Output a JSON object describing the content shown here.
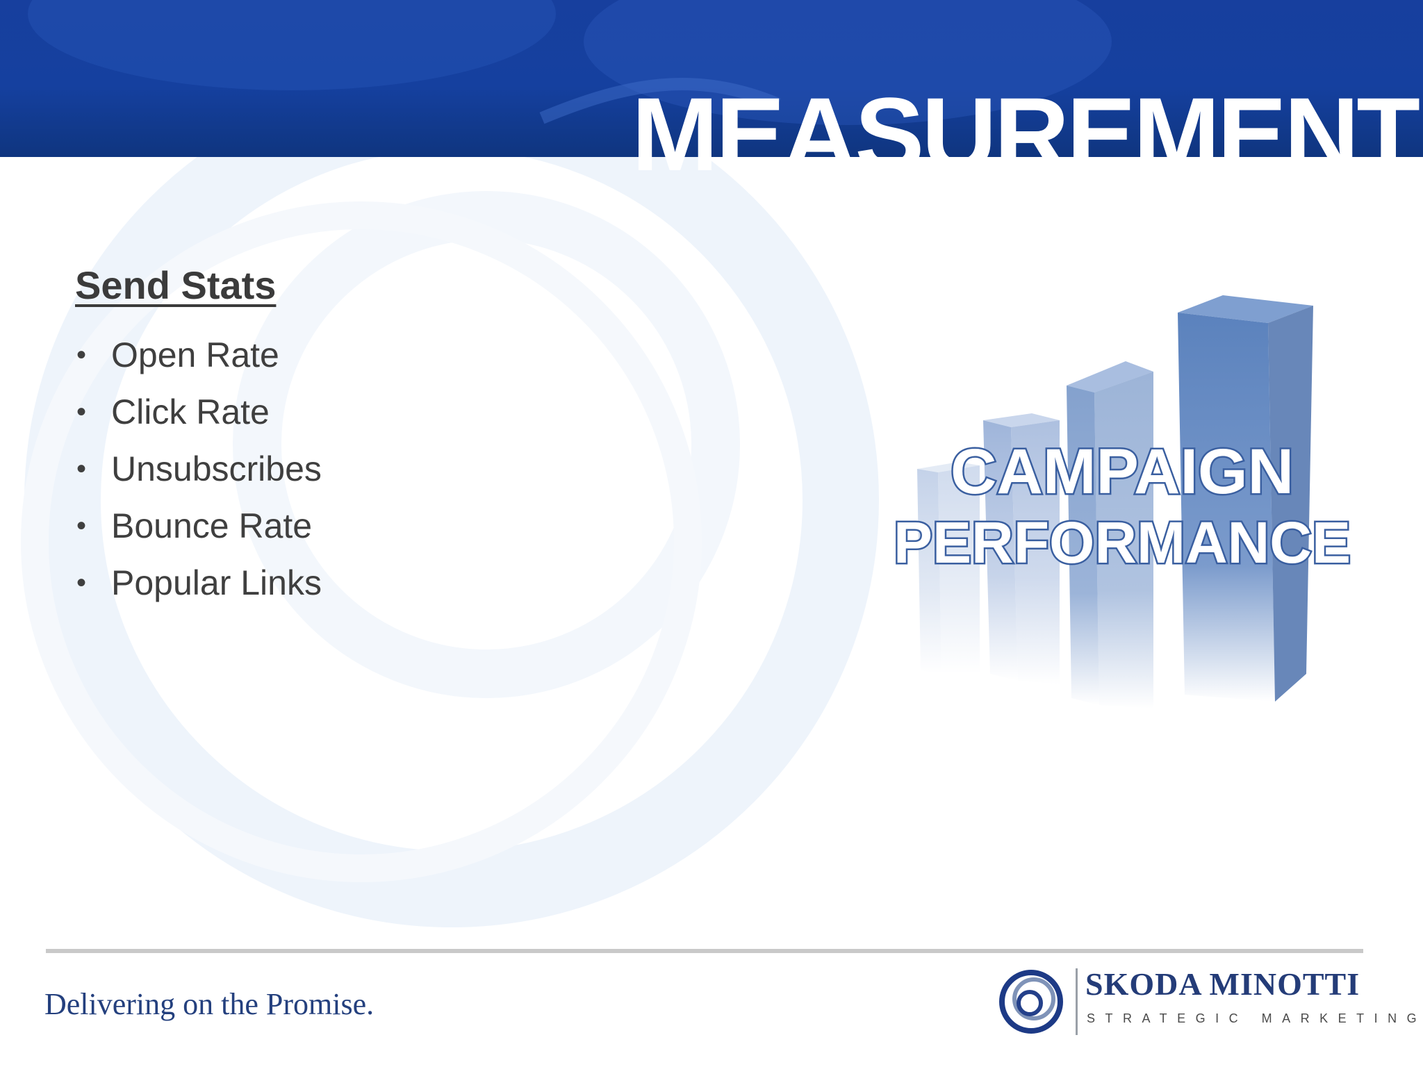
{
  "slide": {
    "title": "MEASUREMENT",
    "section_heading": "Send Stats",
    "stats": [
      "Open Rate",
      "Click Rate",
      "Unsubscribes",
      "Bounce Rate",
      "Popular Links"
    ],
    "graphic": {
      "line1": "CAMPAIGN",
      "line2": "PERFORMANCE"
    }
  },
  "footer": {
    "tagline": "Delivering on the Promise.",
    "logo_name": "SKODA MINOTTI",
    "logo_sub": "STRATEGIC MARKETING"
  },
  "colors": {
    "header_blue": "#173f9e",
    "bar_blue": "#5b82bd",
    "text_gray": "#3f3f3f",
    "brand_navy": "#243c78"
  },
  "bullet_glyph": "•"
}
